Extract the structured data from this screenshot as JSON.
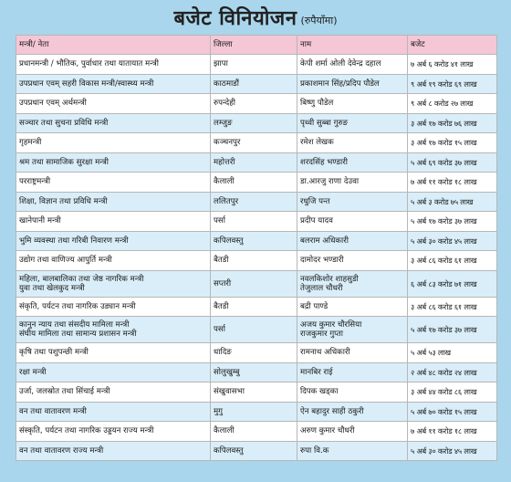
{
  "title": "बजेट विनियोजन",
  "subtitle": "(रुपैयाँमा)",
  "columns": [
    "मन्त्री/ नेता",
    "जिल्ला",
    "नाम",
    "बजेट"
  ],
  "rows": [
    {
      "ministry": "प्रधानमन्त्री / भौतिक, पुर्वाधार तथा यातायात मन्त्री",
      "district": "झापा",
      "name": "केपी शर्मा ओली देवेन्द्र दहाल",
      "budget": "७ अर्ब ६ करोड ४१ लाख"
    },
    {
      "ministry": "उपप्रधान एवम् सहरी विकास मन्त्री/स्वास्थ्य मन्त्री",
      "district": "काठमाडौं",
      "name": "प्रकाशमान सिंह/प्रदिप पौडेल",
      "budget": "९ अर्ब १९ करोड ६९ लाख"
    },
    {
      "ministry": "उपप्रधान एवम् अर्थमन्त्री",
      "district": "रुपन्देही",
      "name": "बिष्णु पौडेल",
      "budget": "९ अर्ब ८ करोड २७ लाख"
    },
    {
      "ministry": "सञ्चार तथा सुचना प्रविधि मन्त्री",
      "district": "लम्जुङ",
      "name": "पृथ्वी सुब्बा गुरुङ",
      "budget": "३ अर्ब १७ करोड ७६ लाख"
    },
    {
      "ministry": "गृहमन्त्री",
      "district": "कञ्चनपुर",
      "name": "रमेश लेखक",
      "budget": "३ अर्ब १७ करोड १५ लाख"
    },
    {
      "ministry": "श्रम तथा सामाजिक सुरक्षा मन्त्री",
      "district": "महोत्तरी",
      "name": "शरदसिंह भण्डारी",
      "budget": "५ अर्ब ६९ करोड ३७ लाख"
    },
    {
      "ministry": "परराष्ट्रमन्त्री",
      "district": "कैलाली",
      "name": "डा.आरजु राणा देउवा",
      "budget": "७ अर्ब ११ करोड १८ लाख"
    },
    {
      "ministry": "शिक्षा, विज्ञान तथा प्रविधि मन्त्री",
      "district": "ललितपुर",
      "name": "रधुजि पन्त",
      "budget": "५ अर्ब ३ करोड ७५ लाख"
    },
    {
      "ministry": "खानेपानी मन्त्री",
      "district": "पर्सा",
      "name": "प्रदीप यादव",
      "budget": "५ अर्ब १७ करोड ३७ लाख"
    },
    {
      "ministry": "भुमि व्यवस्था तथा गरिबी निवारण मन्त्री",
      "district": "कपिलवस्तु",
      "name": "बलराम अधिकारी",
      "budget": "५ अर्ब ३० करोड ४५ लाख"
    },
    {
      "ministry": "उद्योग तथा वाणिज्य आपुर्ति मन्त्री",
      "district": "बैतडी",
      "name": "दामोदर भण्डारी",
      "budget": "३ अर्ब ८६ करोड ६१ लाख"
    },
    {
      "ministry": "महिला, बालबालिका तथा जेष्ठ नागरिक मन्त्री",
      "ministry2": "युवा तथा खेलकुद मन्त्री",
      "district": "सप्तरी",
      "name": "नवलकिशोर शाहसुडी",
      "name2": "तेजुलाल चौधरी",
      "budget": "६ अर्ब ८३ करोड ७१ लाख"
    },
    {
      "ministry": "संकृति, पर्यटन तथा नागरिक उड्यान मन्त्री",
      "district": "बैतडी",
      "name": "बद्री पाण्डे",
      "budget": "३ अर्ब ८६ करोड ६१ लाख"
    },
    {
      "ministry": "कानुन न्याय तथा संसदीय मामिला मन्त्री",
      "ministry2": "संघीय मामिला तथा सामान्य प्रशासन मन्त्री",
      "district": "पर्सा",
      "name": "अजय कुमार चौरसिया",
      "name2": "राजकुमार गुप्ता",
      "budget": "५ अर्ब १७ करोड ३७ लाख"
    },
    {
      "ministry": "कृषि तथा पशुपन्छी मन्त्री",
      "district": "धादिङ",
      "name": "रामनाथ अधिकारी",
      "budget": "५ अर्ब ५३ लाख"
    },
    {
      "ministry": "रक्षा मन्त्री",
      "district": "सोलुखुम्बु",
      "name": "मानबिर राई",
      "budget": "२ अर्ब ४८ करोड २४ लाख"
    },
    {
      "ministry": "उर्जा, जलस्रोत तथा सिंचाई मन्त्री",
      "district": "संखुवासभा",
      "name": "दिपक खड्का",
      "budget": "३ अर्ब ४४ करोड ८६ लाख"
    },
    {
      "ministry": "वन तथा वातावरण मन्त्री",
      "district": "मुगु",
      "name": "ऐन बहादुर साही ठकुरी",
      "budget": "५ अर्ब ७० करोड १५ लाख"
    },
    {
      "ministry": "संस्कृति, पर्यटन तथा नागरिक उड्डयन राज्य मन्त्री",
      "district": "कैलाली",
      "name": "अरुण कुमार चौधरी",
      "budget": "७ अर्ब ११ करोड १८ लाख"
    },
    {
      "ministry": "वन तथा वातावरण राज्य मन्त्री",
      "district": "कपिलवस्तु",
      "name": "रुपा वि.क",
      "budget": "५ अर्ब ३० करोड ४५ लाख"
    }
  ]
}
